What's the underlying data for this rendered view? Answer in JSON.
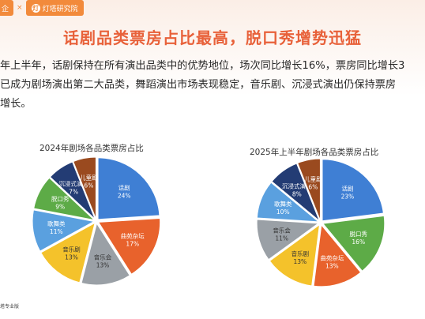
{
  "brand": {
    "left_text": "企",
    "separator": "×",
    "logo_glyph": "灯",
    "right_text": "灯塔研究院"
  },
  "title": "话剧品类票房占比最高，脱口秀增势迅猛",
  "description": {
    "line1": "年上半年，话剧保持在所有演出品类中的优势地位，场次同比增长16%，票房同比增长3",
    "line2": "已成为剧场演出第二大品类，舞蹈演出市场表现稳定，音乐剧、沉浸式演出仍保持票房",
    "line3": "增长。"
  },
  "footer": "塔专业版",
  "colors": {
    "accent": "#e8613a",
    "brand": "#f28a3b"
  },
  "chart_data": [
    {
      "type": "pie",
      "title": "2024年剧场各品类票房占比",
      "slices": [
        {
          "label": "话剧",
          "value": 24,
          "color": "#3f7fd4"
        },
        {
          "label": "曲苑杂坛",
          "value": 17,
          "color": "#e8622c"
        },
        {
          "label": "音乐会",
          "value": 13,
          "color": "#9aa0a6"
        },
        {
          "label": "音乐剧",
          "value": 13,
          "color": "#f4c22b"
        },
        {
          "label": "歌舞类",
          "value": 11,
          "color": "#5aa0df"
        },
        {
          "label": "脱口秀",
          "value": 9,
          "color": "#5dab47"
        },
        {
          "label": "沉浸式演出",
          "value": 7,
          "color": "#233c74"
        },
        {
          "label": "儿童剧",
          "value": 6,
          "color": "#9a4a1f"
        }
      ]
    },
    {
      "type": "pie",
      "title": "2025年上半年剧场各品类票房占比",
      "slices": [
        {
          "label": "话剧",
          "value": 23,
          "color": "#3f7fd4"
        },
        {
          "label": "脱口秀",
          "value": 16,
          "color": "#5dab47"
        },
        {
          "label": "曲苑杂坛",
          "value": 13,
          "color": "#e8622c"
        },
        {
          "label": "音乐剧",
          "value": 13,
          "color": "#f4c22b"
        },
        {
          "label": "音乐会",
          "value": 11,
          "color": "#9aa0a6"
        },
        {
          "label": "歌舞类",
          "value": 10,
          "color": "#5aa0df"
        },
        {
          "label": "沉浸式演出",
          "value": 8,
          "color": "#233c74"
        },
        {
          "label": "儿童剧",
          "value": 6,
          "color": "#9a4a1f"
        }
      ]
    }
  ]
}
